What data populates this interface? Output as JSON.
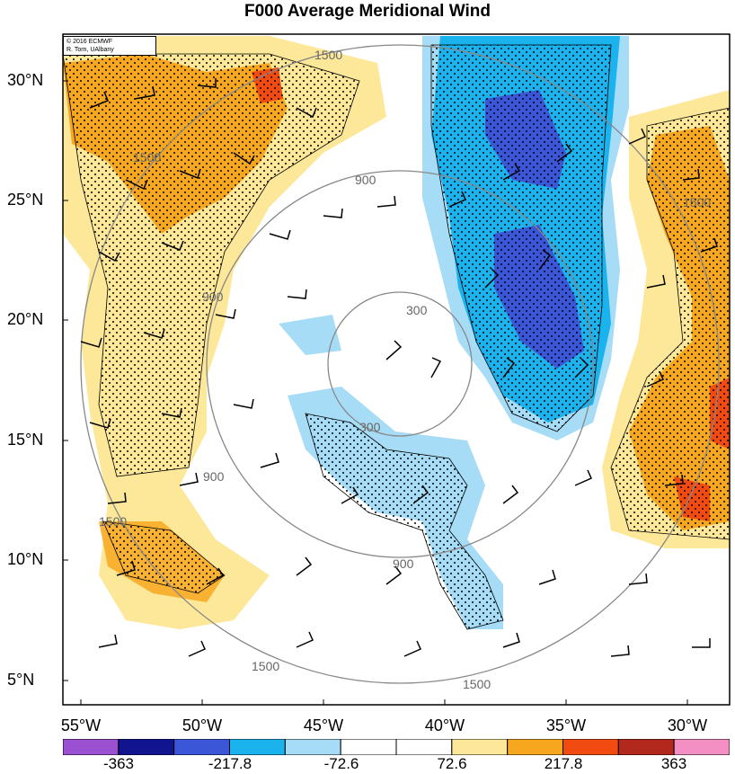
{
  "title": "F000 Average Meridional Wind",
  "credit": {
    "line1": "© 2016 ECMWF",
    "line2": "R. Torn, UAlbany"
  },
  "lat_labels": [
    "30°N",
    "25°N",
    "20°N",
    "15°N",
    "10°N",
    "5°N"
  ],
  "lon_labels": [
    "55°W",
    "50°W",
    "45°W",
    "40°W",
    "35°W",
    "30°W"
  ],
  "contour_labels": [
    "300",
    "300",
    "900",
    "900",
    "900",
    "900",
    "1500",
    "1500",
    "1500",
    "1500",
    "1500",
    "1500"
  ],
  "colorbar": {
    "labels": [
      "-363",
      "-217.8",
      "-72.6",
      "72.6",
      "217.8",
      "363"
    ],
    "colors": [
      "#9b4fd1",
      "#10158f",
      "#3b56d6",
      "#1ab3ee",
      "#a7dcf6",
      "#ffffff",
      "#ffffff",
      "#fde89a",
      "#f7a71e",
      "#f24b12",
      "#b3281d",
      "#f48fc4"
    ]
  },
  "map_colors": {
    "strong_neg": "#3b56d6",
    "mod_neg": "#1ab3ee",
    "weak_neg": "#a7dcf6",
    "weak_pos": "#fde89a",
    "mod_pos": "#f7a71e",
    "strong_pos": "#f24b12"
  }
}
